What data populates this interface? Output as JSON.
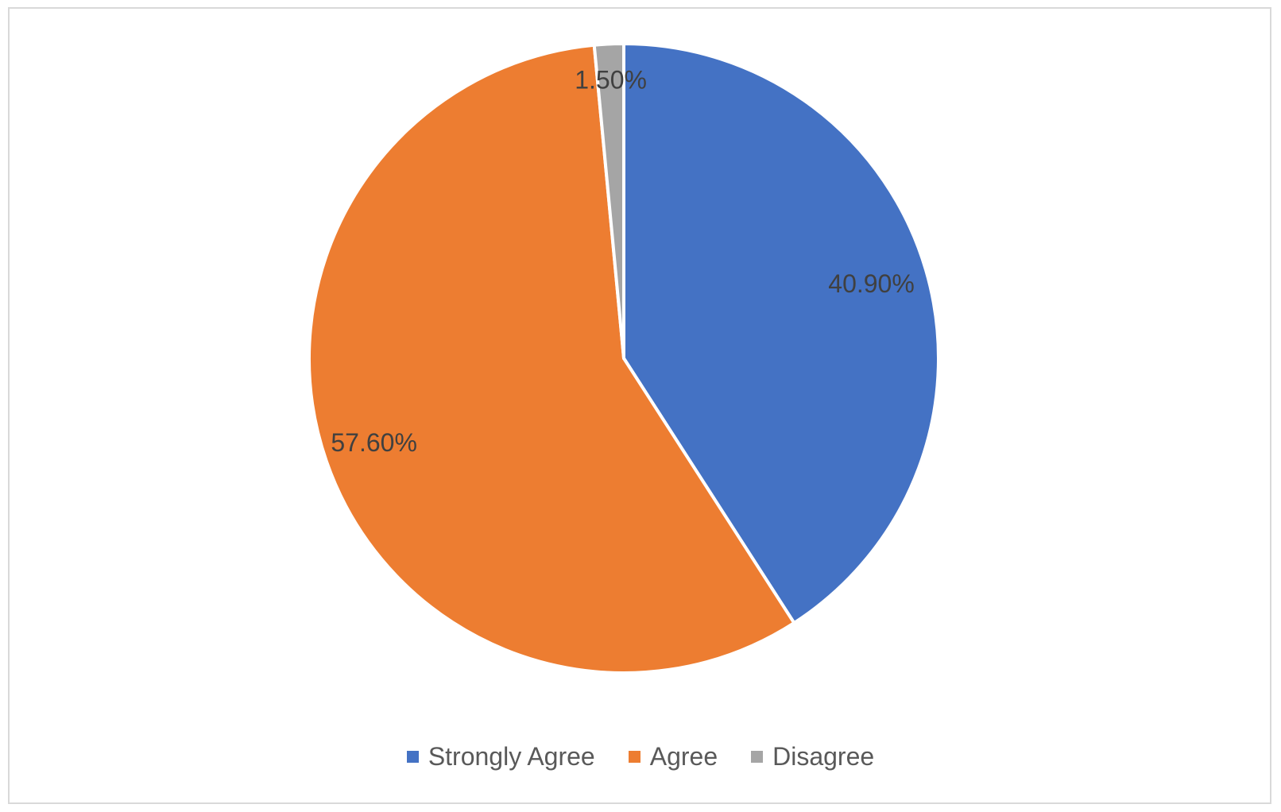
{
  "chart_data": {
    "type": "pie",
    "title": "",
    "legend_position": "bottom",
    "slices": [
      {
        "name": "Strongly Agree",
        "value": 40.9,
        "label": "40.90%",
        "color": "#4472C4"
      },
      {
        "name": "Agree",
        "value": 57.6,
        "label": "57.60%",
        "color": "#ED7D31"
      },
      {
        "name": "Disagree",
        "value": 1.5,
        "label": "1.50%",
        "color": "#A5A5A5"
      }
    ]
  }
}
